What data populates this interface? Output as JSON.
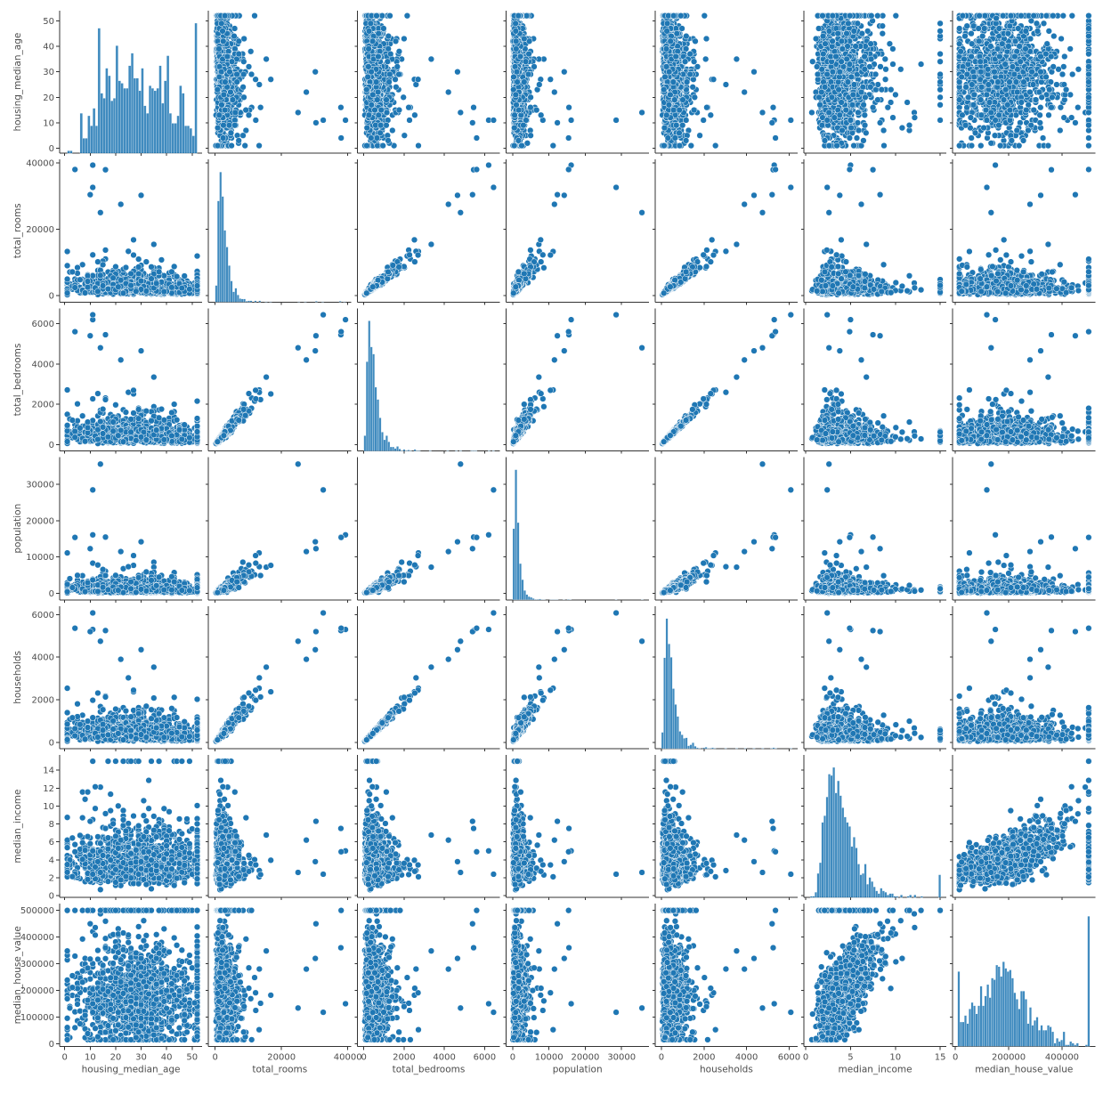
{
  "chart_data": {
    "type": "scatter",
    "kind": "pairplot",
    "colors": {
      "marker": "#1f77b4",
      "marker_edge": "#ffffff",
      "axis": "#333333",
      "text": "#4d4d4d"
    },
    "grid": false,
    "legend": "none",
    "variables": [
      {
        "name": "housing_median_age",
        "lim": [
          -2,
          54
        ],
        "ticks": [
          0,
          10,
          20,
          30,
          40,
          50
        ],
        "tick_labels": [
          "0",
          "10",
          "20",
          "30",
          "40",
          "50"
        ],
        "hist_bins": [
          1,
          1,
          0,
          0,
          0,
          16,
          6,
          6,
          15,
          11,
          18,
          11,
          50,
          24,
          22,
          34,
          31,
          21,
          22,
          43,
          29,
          28,
          26,
          26,
          35,
          40,
          30,
          30,
          25,
          34,
          19,
          16,
          27,
          26,
          25,
          26,
          35,
          20,
          29,
          39,
          16,
          12,
          12,
          15,
          27,
          24,
          11,
          11,
          10,
          7,
          52
        ]
      },
      {
        "name": "total_rooms",
        "lim": [
          -2000,
          41000
        ],
        "ticks": [
          0,
          20000,
          40000
        ],
        "tick_labels": [
          "0",
          "20000",
          "40000"
        ]
      },
      {
        "name": "total_bedrooms",
        "lim": [
          -320,
          6760
        ],
        "ticks": [
          0,
          2000,
          4000,
          6000
        ],
        "tick_labels": [
          "0",
          "2000",
          "4000",
          "6000"
        ]
      },
      {
        "name": "population",
        "lim": [
          -1800,
          37500
        ],
        "ticks": [
          0,
          10000,
          20000,
          30000
        ],
        "tick_labels": [
          "0",
          "10000",
          "20000",
          "30000"
        ]
      },
      {
        "name": "households",
        "lim": [
          -300,
          6400
        ],
        "ticks": [
          0,
          2000,
          4000,
          6000
        ],
        "tick_labels": [
          "0",
          "2000",
          "4000",
          "6000"
        ]
      },
      {
        "name": "median_income",
        "lim": [
          -0.2,
          15.7
        ],
        "ticks": [
          0,
          5,
          10,
          15
        ],
        "tick_labels": [
          "0",
          "5",
          "10",
          "15"
        ],
        "ticks_y": [
          0,
          2,
          4,
          6,
          8,
          10,
          12,
          14
        ],
        "tick_labels_y": [
          "0",
          "2",
          "4",
          "6",
          "8",
          "10",
          "12",
          "14"
        ]
      },
      {
        "name": "median_house_value",
        "lim": [
          -10000,
          525000
        ],
        "ticks": [
          0,
          100000,
          200000,
          300000,
          400000,
          500000
        ],
        "tick_labels": [
          "0",
          "100000",
          "200000",
          "300000",
          "400000",
          "500000"
        ],
        "ticks_x": [
          0,
          200000,
          400000
        ],
        "tick_labels_x": [
          "0",
          "200000",
          "400000"
        ]
      }
    ]
  }
}
